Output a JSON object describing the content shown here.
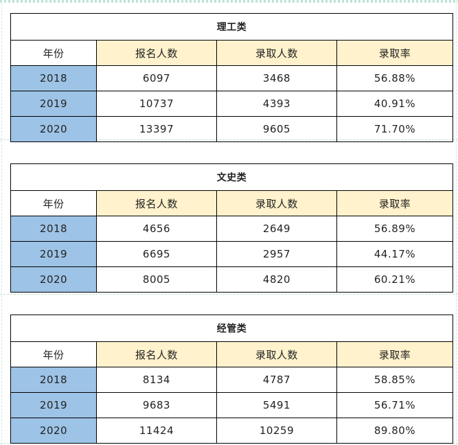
{
  "headers": [
    "年份",
    "报名人数",
    "录取人数",
    "录取率"
  ],
  "tables": [
    {
      "title": "理工类",
      "rows": [
        {
          "year": "2018",
          "applicants": "6097",
          "admitted": "3468",
          "rate": "56.88%"
        },
        {
          "year": "2019",
          "applicants": "10737",
          "admitted": "4393",
          "rate": "40.91%"
        },
        {
          "year": "2020",
          "applicants": "13397",
          "admitted": "9605",
          "rate": "71.70%"
        }
      ]
    },
    {
      "title": "文史类",
      "rows": [
        {
          "year": "2018",
          "applicants": "4656",
          "admitted": "2649",
          "rate": "56.89%"
        },
        {
          "year": "2019",
          "applicants": "6695",
          "admitted": "2957",
          "rate": "44.17%"
        },
        {
          "year": "2020",
          "applicants": "8005",
          "admitted": "4820",
          "rate": "60.21%"
        }
      ]
    },
    {
      "title": "经管类",
      "rows": [
        {
          "year": "2018",
          "applicants": "8134",
          "admitted": "4787",
          "rate": "58.85%"
        },
        {
          "year": "2019",
          "applicants": "9683",
          "admitted": "5491",
          "rate": "56.71%"
        },
        {
          "year": "2020",
          "applicants": "11424",
          "admitted": "10259",
          "rate": "89.80%"
        }
      ]
    }
  ]
}
